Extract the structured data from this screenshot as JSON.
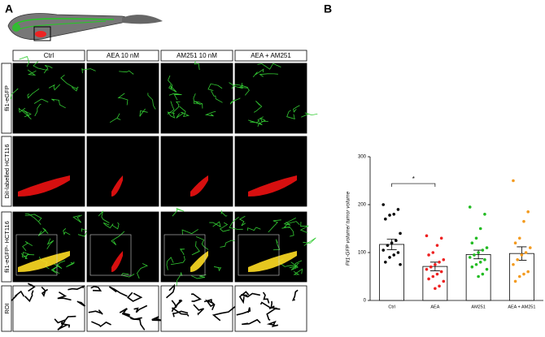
{
  "figure": {
    "panel_a": "A",
    "panel_b": "B",
    "columns": [
      "Ctrl",
      "AEA  10 nM",
      "AM251  10 nM",
      "AEA + AM251"
    ],
    "rows": [
      "fli1-eGFP",
      "DiI-labelled HCT116",
      "fli1-eGFP- HCT116",
      "ROI"
    ]
  },
  "chart_data": {
    "type": "bar",
    "y_label": "Fli1-GFP volume/ tumor volume",
    "categories": [
      "Ctrl",
      "AEA",
      "AM251",
      "AEA + AM251"
    ],
    "values": [
      117,
      71,
      96,
      98
    ],
    "errors": [
      11,
      9,
      9,
      14
    ],
    "points": [
      [
        200,
        190,
        180,
        178,
        170,
        140,
        125,
        120,
        115,
        105,
        100,
        95,
        90,
        80,
        75
      ],
      [
        135,
        130,
        115,
        100,
        95,
        85,
        80,
        75,
        70,
        65,
        60,
        55,
        50,
        45,
        40,
        30,
        25
      ],
      [
        195,
        180,
        150,
        130,
        120,
        110,
        105,
        100,
        95,
        90,
        85,
        80,
        75,
        70,
        65,
        55,
        50
      ],
      [
        250,
        185,
        165,
        130,
        120,
        110,
        100,
        95,
        85,
        75,
        60,
        55,
        50,
        40
      ]
    ],
    "colors": [
      "#000000",
      "#ee2020",
      "#22bb22",
      "#f39a1e"
    ],
    "bar_color": "#ffffff",
    "annotation": "*",
    "annotation_value": 244,
    "ylim": [
      0,
      300
    ],
    "yticks": [
      0,
      100,
      200,
      300
    ]
  }
}
